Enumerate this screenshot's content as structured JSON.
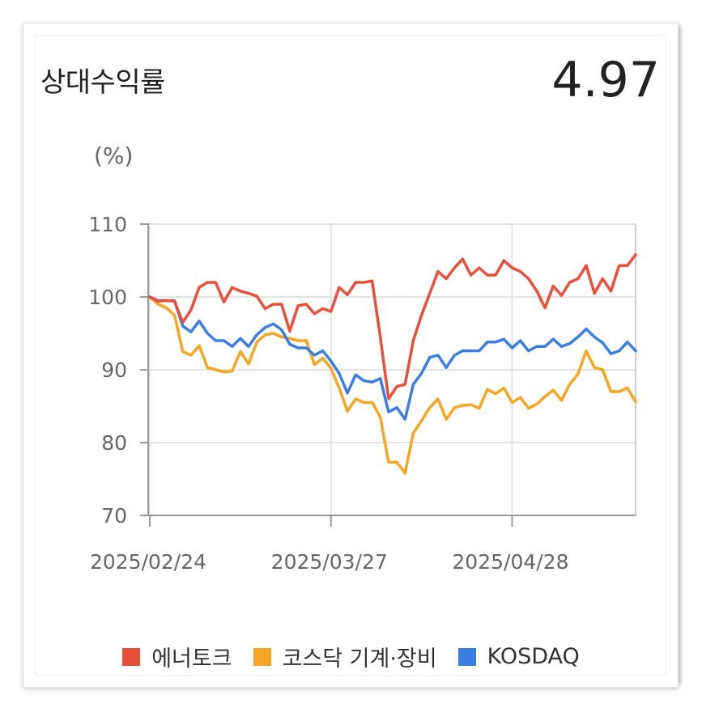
{
  "header": {
    "title": "상대수익률",
    "metric": "4.97"
  },
  "chart_data": {
    "type": "line",
    "unit_label": "(%)",
    "ylim": [
      70,
      110
    ],
    "yticks": [
      70,
      80,
      90,
      100,
      110
    ],
    "x_tick_labels": [
      "2025/02/24",
      "2025/03/27",
      "2025/04/28"
    ],
    "x_tick_index": [
      0,
      22,
      44
    ],
    "grid": true,
    "legend_position": "bottom",
    "series": [
      {
        "name": "에너토크",
        "color": "#e8503c",
        "values": [
          100,
          99.4,
          99.5,
          99.4,
          96.5,
          98.2,
          101.3,
          102.0,
          102.0,
          99.3,
          101.3,
          100.8,
          100.5,
          100.1,
          98.4,
          99.0,
          99.0,
          95.3,
          98.8,
          99.0,
          97.7,
          98.4,
          98.0,
          101.3,
          100.3,
          102.0,
          102.0,
          102.2,
          94.5,
          86.0,
          87.7,
          88.0,
          94.0,
          97.5,
          100.5,
          103.5,
          102.5,
          104.0,
          105.2,
          103.0,
          104.0,
          103.0,
          103.0,
          105.0,
          104.0,
          103.5,
          102.5,
          100.8,
          98.5,
          101.5,
          100.2,
          102.0,
          102.5,
          104.3,
          100.5,
          102.5,
          100.8,
          104.3,
          104.3,
          105.8
        ]
      },
      {
        "name": "코스닥 기계·장비",
        "color": "#f5a623",
        "values": [
          100,
          99.0,
          98.5,
          97.5,
          92.5,
          92.0,
          93.3,
          90.3,
          90.0,
          89.7,
          89.8,
          92.5,
          90.8,
          93.8,
          94.8,
          95.0,
          94.5,
          94.3,
          94.0,
          94.0,
          90.7,
          91.6,
          90.2,
          87.5,
          84.3,
          86.0,
          85.5,
          85.5,
          83.5,
          77.3,
          77.3,
          75.8,
          81.3,
          83.0,
          84.8,
          86.0,
          83.2,
          84.8,
          85.1,
          85.2,
          84.7,
          87.3,
          86.7,
          87.5,
          85.5,
          86.2,
          84.7,
          85.3,
          86.3,
          87.2,
          85.8,
          88.0,
          89.4,
          92.6,
          90.3,
          90.0,
          87.0,
          87.0,
          87.5,
          85.6
        ]
      },
      {
        "name": "KOSDAQ",
        "color": "#3b7de0",
        "values": [
          100,
          99.5,
          99.5,
          99.5,
          96.0,
          95.2,
          96.7,
          95.0,
          94.0,
          94.0,
          93.2,
          94.3,
          93.2,
          94.8,
          95.8,
          96.3,
          95.5,
          93.5,
          93.0,
          93.0,
          92.0,
          92.6,
          91.2,
          89.5,
          86.8,
          89.3,
          88.5,
          88.3,
          88.8,
          84.2,
          84.8,
          83.2,
          88.0,
          89.5,
          91.7,
          92.0,
          90.3,
          92.0,
          92.6,
          92.6,
          92.6,
          93.8,
          93.8,
          94.2,
          93.0,
          94.0,
          92.6,
          93.2,
          93.2,
          94.2,
          93.2,
          93.6,
          94.5,
          95.6,
          94.5,
          93.7,
          92.2,
          92.6,
          93.8,
          92.6
        ]
      }
    ]
  }
}
